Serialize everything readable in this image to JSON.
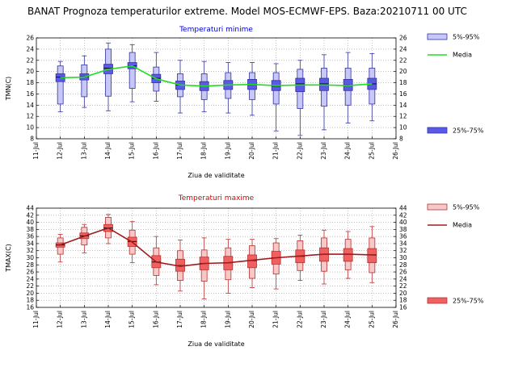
{
  "title": "BANAT  Prognoza temperaturilor extreme.  Model MOS-ECMWF-EPS. Baza:20210711 00 UTC",
  "categories": [
    "11-Jul",
    "12-Jul",
    "13-Jul",
    "14-Jul",
    "15-Jul",
    "16-Jul",
    "17-Jul",
    "18-Jul",
    "19-Jul",
    "20-Jul",
    "21-Jul",
    "22-Jul",
    "23-Jul",
    "24-Jul",
    "25-Jul",
    "26-Jul"
  ],
  "chart_data": [
    {
      "type": "box",
      "title": "Temperaturi minime",
      "xlabel": "Ziua de validitate",
      "ylabel": "TMN(C)",
      "ylim": [
        8,
        26
      ],
      "yticks": [
        8,
        10,
        12,
        14,
        16,
        18,
        20,
        22,
        24,
        26
      ],
      "legend": {
        "p5_95": "5%-95%",
        "media": "Media",
        "p25_75": "25%-75%"
      },
      "colors": {
        "outer_fill": "#c8c8f8",
        "inner_fill": "#5a5ae6",
        "stroke": "#3232a0",
        "media": "#22dd22",
        "title": "#0000cc"
      },
      "series": [
        {
          "date": "12-Jul",
          "min": 12.8,
          "p5": 14.2,
          "p25": 18.2,
          "median": 19.0,
          "p75": 19.6,
          "p95": 21.0,
          "max": 21.8,
          "mean": 18.9
        },
        {
          "date": "13-Jul",
          "min": 13.6,
          "p5": 15.5,
          "p25": 18.5,
          "median": 19.1,
          "p75": 19.6,
          "p95": 21.2,
          "max": 22.8,
          "mean": 19.0
        },
        {
          "date": "14-Jul",
          "min": 13.0,
          "p5": 15.6,
          "p25": 19.6,
          "median": 20.6,
          "p75": 21.3,
          "p95": 24.0,
          "max": 25.1,
          "mean": 20.4
        },
        {
          "date": "15-Jul",
          "min": 14.6,
          "p5": 17.0,
          "p25": 20.5,
          "median": 21.0,
          "p75": 21.6,
          "p95": 23.4,
          "max": 24.8,
          "mean": 21.0
        },
        {
          "date": "16-Jul",
          "min": 14.7,
          "p5": 16.5,
          "p25": 18.0,
          "median": 18.8,
          "p75": 19.5,
          "p95": 20.8,
          "max": 23.4,
          "mean": 18.7
        },
        {
          "date": "17-Jul",
          "min": 12.6,
          "p5": 15.5,
          "p25": 16.8,
          "median": 17.6,
          "p75": 18.3,
          "p95": 19.6,
          "max": 22.0,
          "mean": 17.6
        },
        {
          "date": "18-Jul",
          "min": 12.8,
          "p5": 15.0,
          "p25": 16.6,
          "median": 17.4,
          "p75": 18.2,
          "p95": 19.6,
          "max": 21.8,
          "mean": 17.4
        },
        {
          "date": "19-Jul",
          "min": 12.6,
          "p5": 15.2,
          "p25": 16.8,
          "median": 17.6,
          "p75": 18.4,
          "p95": 19.8,
          "max": 21.6,
          "mean": 17.6
        },
        {
          "date": "20-Jul",
          "min": 12.2,
          "p5": 15.0,
          "p25": 16.8,
          "median": 17.6,
          "p75": 18.6,
          "p95": 19.8,
          "max": 21.6,
          "mean": 17.7
        },
        {
          "date": "21-Jul",
          "min": 9.4,
          "p5": 14.2,
          "p25": 16.6,
          "median": 17.4,
          "p75": 18.4,
          "p95": 19.8,
          "max": 21.4,
          "mean": 17.5
        },
        {
          "date": "22-Jul",
          "min": 8.6,
          "p5": 13.4,
          "p25": 16.4,
          "median": 17.8,
          "p75": 18.8,
          "p95": 20.4,
          "max": 22.0,
          "mean": 17.6
        },
        {
          "date": "23-Jul",
          "min": 9.6,
          "p5": 13.8,
          "p25": 16.6,
          "median": 17.8,
          "p75": 18.8,
          "p95": 20.6,
          "max": 23.0,
          "mean": 17.6
        },
        {
          "date": "24-Jul",
          "min": 10.8,
          "p5": 14.0,
          "p25": 16.6,
          "median": 17.6,
          "p75": 18.6,
          "p95": 20.6,
          "max": 23.4,
          "mean": 17.5
        },
        {
          "date": "25-Jul",
          "min": 11.2,
          "p5": 14.2,
          "p25": 16.8,
          "median": 17.8,
          "p75": 18.8,
          "p95": 20.6,
          "max": 23.2,
          "mean": 17.8
        }
      ]
    },
    {
      "type": "box",
      "title": "Temperaturi maxime",
      "xlabel": "Ziua de validitate",
      "ylabel": "TMAX(C)",
      "ylim": [
        16,
        44
      ],
      "yticks": [
        16,
        18,
        20,
        22,
        24,
        26,
        28,
        30,
        32,
        34,
        36,
        38,
        40,
        42,
        44
      ],
      "legend": {
        "p5_95": "5%-95%",
        "media": "Media",
        "p25_75": "25%-75%"
      },
      "colors": {
        "outer_fill": "#f8c8c8",
        "inner_fill": "#f06060",
        "stroke": "#b83030",
        "media": "#a01c1c",
        "title": "#dd0000"
      },
      "series": [
        {
          "date": "12-Jul",
          "min": 28.8,
          "p5": 31.0,
          "p25": 33.0,
          "median": 33.6,
          "p75": 34.2,
          "p95": 35.6,
          "max": 36.6,
          "mean": 33.6
        },
        {
          "date": "13-Jul",
          "min": 31.4,
          "p5": 33.6,
          "p25": 35.4,
          "median": 36.2,
          "p75": 37.0,
          "p95": 38.6,
          "max": 39.4,
          "mean": 36.1
        },
        {
          "date": "14-Jul",
          "min": 34.0,
          "p5": 35.6,
          "p25": 37.4,
          "median": 38.4,
          "p75": 39.4,
          "p95": 41.4,
          "max": 42.2,
          "mean": 38.4
        },
        {
          "date": "15-Jul",
          "min": 28.6,
          "p5": 31.0,
          "p25": 33.2,
          "median": 34.6,
          "p75": 35.8,
          "p95": 37.8,
          "max": 40.2,
          "mean": 34.4
        },
        {
          "date": "16-Jul",
          "min": 22.4,
          "p5": 25.0,
          "p25": 27.2,
          "median": 28.8,
          "p75": 30.6,
          "p95": 32.8,
          "max": 36.0,
          "mean": 28.8
        },
        {
          "date": "17-Jul",
          "min": 20.6,
          "p5": 23.6,
          "p25": 26.2,
          "median": 27.8,
          "p75": 29.6,
          "p95": 32.0,
          "max": 35.0,
          "mean": 27.6
        },
        {
          "date": "18-Jul",
          "min": 18.4,
          "p5": 23.4,
          "p25": 26.6,
          "median": 28.4,
          "p75": 30.2,
          "p95": 32.2,
          "max": 35.6,
          "mean": 28.4
        },
        {
          "date": "19-Jul",
          "min": 20.0,
          "p5": 23.8,
          "p25": 26.6,
          "median": 28.6,
          "p75": 30.4,
          "p95": 32.8,
          "max": 35.2,
          "mean": 28.6
        },
        {
          "date": "20-Jul",
          "min": 21.6,
          "p5": 24.2,
          "p25": 27.2,
          "median": 29.2,
          "p75": 30.8,
          "p95": 33.4,
          "max": 35.2,
          "mean": 29.3
        },
        {
          "date": "21-Jul",
          "min": 21.2,
          "p5": 25.4,
          "p25": 28.2,
          "median": 30.0,
          "p75": 31.8,
          "p95": 34.2,
          "max": 35.4,
          "mean": 30.0
        },
        {
          "date": "22-Jul",
          "min": 23.6,
          "p5": 26.4,
          "p25": 28.6,
          "median": 30.4,
          "p75": 32.2,
          "p95": 34.8,
          "max": 36.4,
          "mean": 30.5
        },
        {
          "date": "23-Jul",
          "min": 22.6,
          "p5": 26.2,
          "p25": 29.0,
          "median": 31.0,
          "p75": 32.8,
          "p95": 35.6,
          "max": 37.8,
          "mean": 31.0
        },
        {
          "date": "24-Jul",
          "min": 24.2,
          "p5": 26.6,
          "p25": 29.0,
          "median": 31.0,
          "p75": 32.6,
          "p95": 35.2,
          "max": 37.4,
          "mean": 31.0
        },
        {
          "date": "25-Jul",
          "min": 23.0,
          "p5": 25.8,
          "p25": 28.6,
          "median": 30.8,
          "p75": 32.6,
          "p95": 35.6,
          "max": 38.8,
          "mean": 30.8
        }
      ]
    }
  ]
}
